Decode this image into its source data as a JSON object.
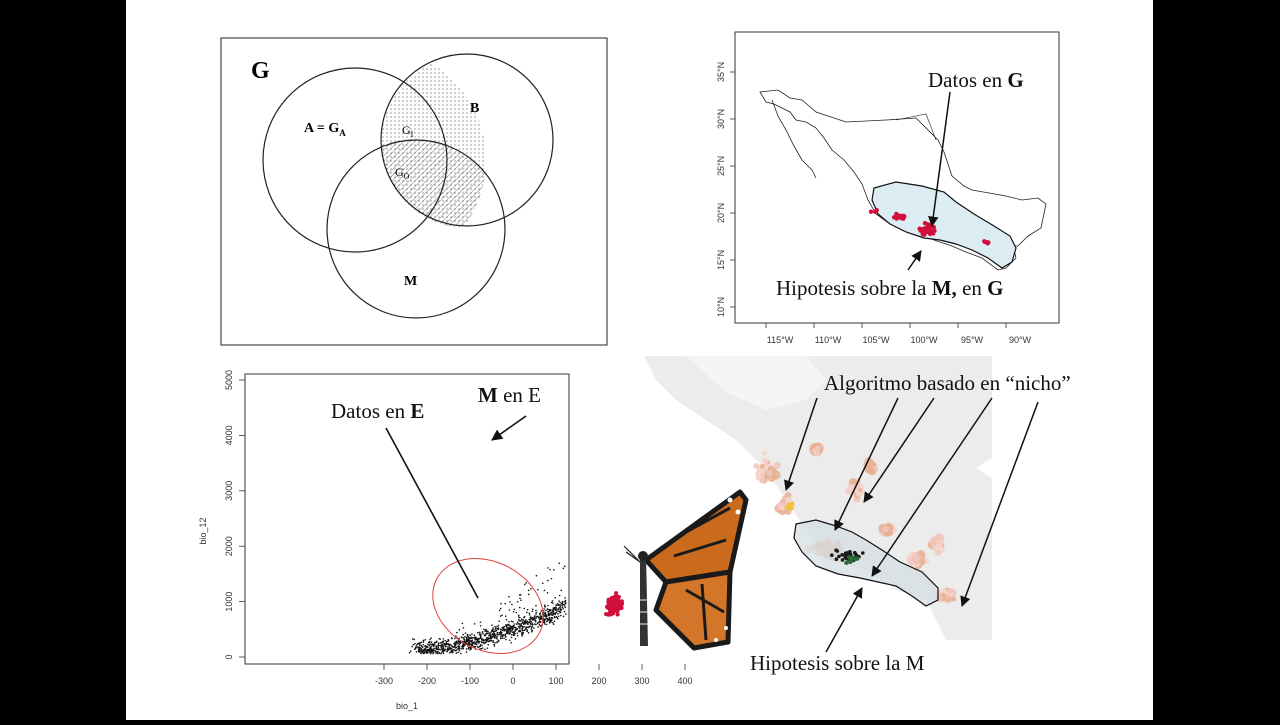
{
  "venn": {
    "frame_label": "G",
    "label_a": "A = G",
    "label_a_sub": "A",
    "label_b": "B",
    "label_gi": "G",
    "label_gi_sub": "I",
    "label_go": "G",
    "label_go_sub": "O",
    "label_m": "M"
  },
  "map_g": {
    "annotation_data": "Datos en ",
    "annotation_data_bold": "G",
    "annotation_m_pre": "Hipotesis sobre la ",
    "annotation_m_bold": "M,",
    "annotation_m_mid": " en ",
    "annotation_m_bold2": "G",
    "lat_ticks": [
      "35°N",
      "30°N",
      "25°N",
      "20°N",
      "15°N",
      "10°N"
    ],
    "lon_ticks": [
      "115°W",
      "110°W",
      "105°W",
      "100°W",
      "95°W",
      "90°W"
    ]
  },
  "scatter_e": {
    "annotation_data": "Datos en ",
    "annotation_data_bold": "E",
    "annotation_m_bold": "M",
    "annotation_m_rest": " en E",
    "xlabel": "bio_1",
    "ylabel": "bio_12",
    "x_ticks": [
      "-300",
      "-200",
      "-100",
      "0",
      "100",
      "200",
      "300",
      "400"
    ],
    "y_ticks": [
      "0",
      "1000",
      "2000",
      "3000",
      "4000",
      "5000"
    ],
    "colors": {
      "background_points": "#111111",
      "m_points": "#3b3bd0",
      "data_points": "#d0103a",
      "ellipse": "#e04040"
    }
  },
  "niche_map": {
    "annotation_algo": "Algoritmo basado en “nicho”",
    "annotation_m": "Hipotesis sobre la M"
  }
}
